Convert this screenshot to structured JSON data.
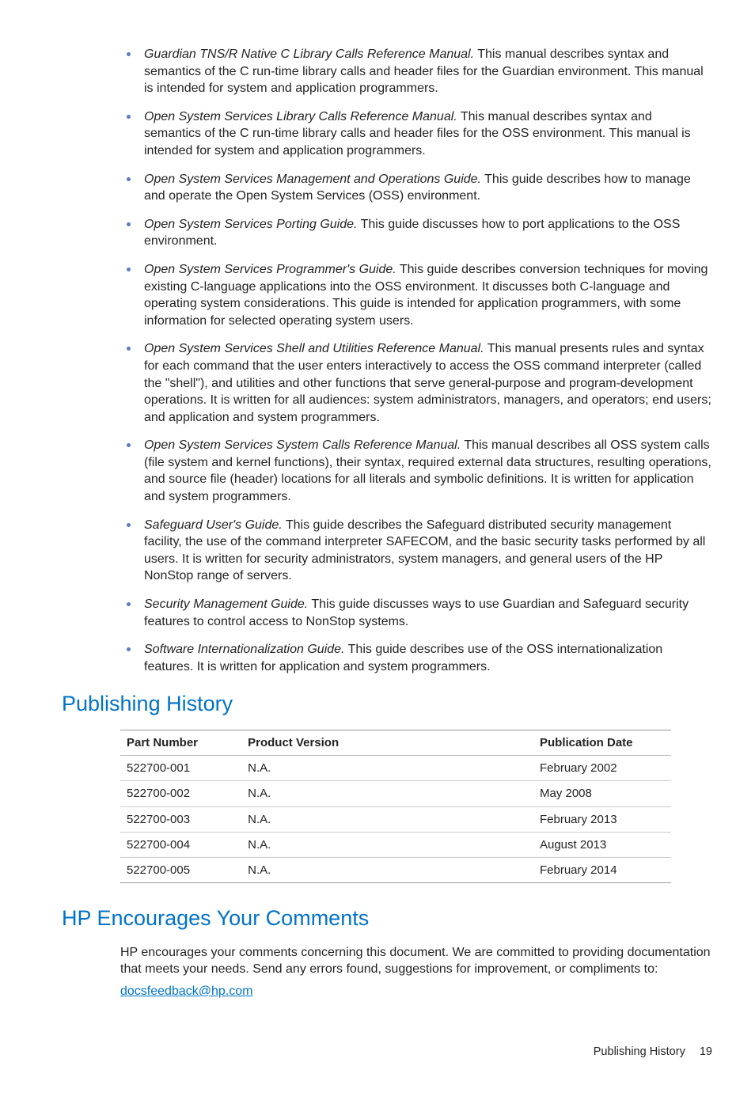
{
  "colors": {
    "accent": "#0073c8",
    "bullet": "#5a7bbf",
    "text": "#232323",
    "border_outer": "#999999",
    "border_inner": "#cccccc",
    "background": "#ffffff"
  },
  "typography": {
    "body_family": "Segoe UI / Helvetica Neue / Arial",
    "body_size_pt": 12,
    "body_weight": 300,
    "heading_size_pt": 20,
    "heading_weight": 300,
    "heading_color": "#0073c8"
  },
  "bullets": [
    {
      "title": "Guardian TNS/R Native C Library Calls Reference Manual.",
      "rest": " This manual describes syntax and semantics of the C run-time library calls and header files for the Guardian environment. This manual is intended for system and application programmers."
    },
    {
      "title": "Open System Services Library Calls Reference Manual.",
      "rest": " This manual describes syntax and semantics of the C run-time library calls and header files for the OSS environment. This manual is intended for system and application programmers."
    },
    {
      "title": "Open System Services Management and Operations Guide.",
      "rest": " This guide describes how to manage and operate the Open System Services (OSS) environment."
    },
    {
      "title": "Open System Services Porting Guide.",
      "rest": " This guide discusses how to port applications to the OSS environment."
    },
    {
      "title": "Open System Services Programmer's Guide.",
      "rest": " This guide describes conversion techniques for moving existing C-language applications into the OSS environment. It discusses both C-language and operating system considerations. This guide is intended for application programmers, with some information for selected operating system users."
    },
    {
      "title": "Open System Services Shell and Utilities Reference Manual.",
      "rest": " This manual presents rules and syntax for each command that the user enters interactively to access the OSS command interpreter (called the \"shell\"), and utilities and other functions that serve general-purpose and program-development operations. It is written for all audiences: system administrators, managers, and operators; end users; and application and system programmers."
    },
    {
      "title": "Open System Services System Calls Reference Manual.",
      "rest": " This manual describes all OSS system calls (file system and kernel functions), their syntax, required external data structures, resulting operations, and source file (header) locations for all literals and symbolic definitions. It is written for application and system programmers."
    },
    {
      "title": "Safeguard User's Guide.",
      "rest": " This guide describes the Safeguard distributed security management facility, the use of the command interpreter SAFECOM, and the basic security tasks performed by all users. It is written for security administrators, system managers, and general users of the HP NonStop range of servers."
    },
    {
      "title": "Security Management Guide.",
      "rest": " This guide discusses ways to use Guardian and Safeguard security features to control access to NonStop systems."
    },
    {
      "title": "Software Internationalization Guide.",
      "rest": " This guide describes use of the OSS internationalization features. It is written for application and system programmers."
    }
  ],
  "publishing": {
    "heading": "Publishing History",
    "table": {
      "type": "table",
      "columns": [
        {
          "label": "Part Number",
          "width_pct": 22,
          "align": "left"
        },
        {
          "label": "Product Version",
          "width_pct": 53,
          "align": "left"
        },
        {
          "label": "Publication Date",
          "width_pct": 25,
          "align": "left"
        }
      ],
      "header_bg": "#ffffff",
      "header_weight": 700,
      "border_top_color": "#999999",
      "row_border_color": "#cccccc",
      "rows": [
        [
          "522700-001",
          "N.A.",
          "February 2002"
        ],
        [
          "522700-002",
          "N.A.",
          "May 2008"
        ],
        [
          "522700-003",
          "N.A.",
          "February 2013"
        ],
        [
          "522700-004",
          "N.A.",
          "August 2013"
        ],
        [
          "522700-005",
          "N.A.",
          "February 2014"
        ]
      ]
    }
  },
  "comments": {
    "heading": "HP Encourages Your Comments",
    "body": "HP encourages your comments concerning this document. We are committed to providing documentation that meets your needs. Send any errors found, suggestions for improvement, or compliments to:",
    "email": "docsfeedback@hp.com"
  },
  "footer": {
    "section": "Publishing History",
    "page": "19"
  }
}
